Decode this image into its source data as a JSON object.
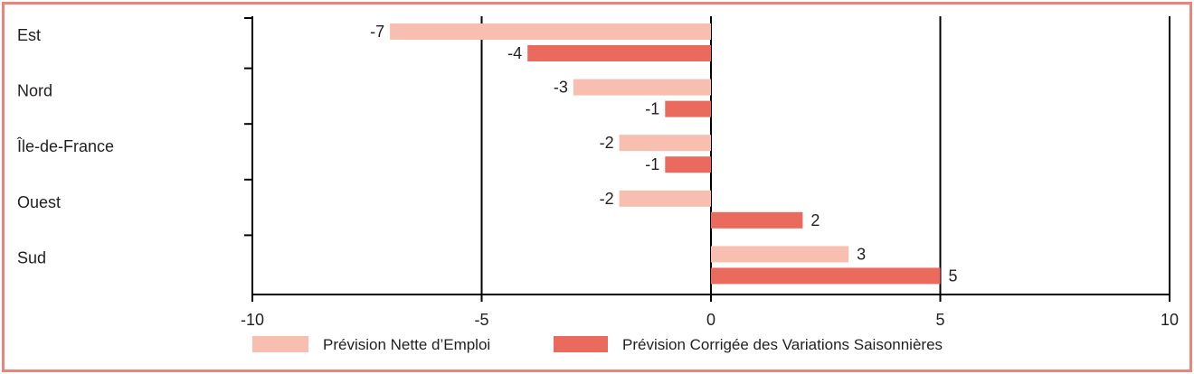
{
  "chart_data": {
    "type": "bar",
    "orientation": "horizontal",
    "categories": [
      "Est",
      "Nord",
      "Île-de-France",
      "Ouest",
      "Sud"
    ],
    "series": [
      {
        "name": "Prévision Nette d’Emploi",
        "values": [
          -7,
          -3,
          -2,
          -2,
          3
        ],
        "color": "#f8bfb0"
      },
      {
        "name": "Prévision Corrigée des Variations Saisonnières",
        "values": [
          -4,
          -1,
          -1,
          2,
          5
        ],
        "color": "#ea6b5d"
      }
    ],
    "xlim": [
      -10,
      10
    ],
    "xticks": [
      -10,
      -5,
      0,
      5,
      10
    ],
    "xtick_labels": [
      "-10",
      "-5",
      "0",
      "5",
      "10"
    ],
    "grid": true,
    "legend_position": "bottom"
  },
  "colors": {
    "border": "#e9857a",
    "axis": "#000000"
  }
}
